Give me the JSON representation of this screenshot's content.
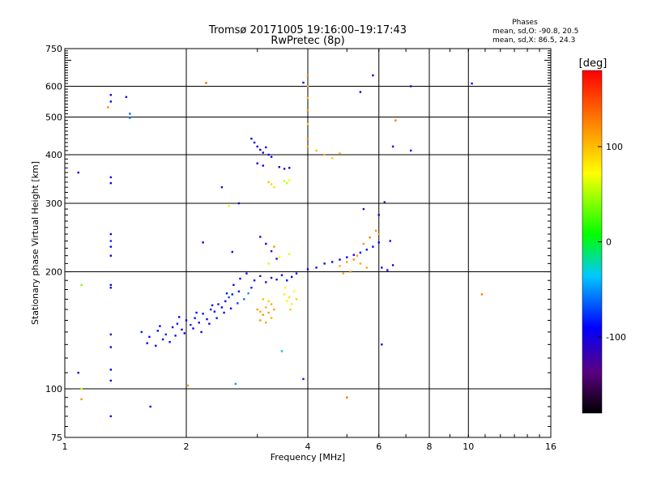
{
  "chart_data": {
    "type": "scatter",
    "title": "Tromsø 20171005  19:16:00–19:17:43",
    "subtitle": "RwPretec (8p)",
    "stats": {
      "heading": "Phases",
      "line_o": "mean, sd,O: -90.8, 20.5",
      "line_x": "mean, sd,X:  86.5, 24.3"
    },
    "xlabel": "Frequency [MHz]",
    "ylabel": "Stationary phase Virtual Height [km]",
    "xscale": "log",
    "yscale": "log",
    "xlim": [
      1,
      16
    ],
    "ylim": [
      75,
      750
    ],
    "x_ticks": [
      "1",
      "2",
      "4",
      "6",
      "8",
      "10",
      "16"
    ],
    "y_ticks": [
      "75",
      "100",
      "200",
      "300",
      "400",
      "500",
      "600",
      "750"
    ],
    "x_gridlines": [
      2,
      4,
      6,
      8,
      10
    ],
    "y_gridlines": [
      100,
      200,
      300,
      400,
      500,
      600
    ],
    "colorbar": {
      "label": "[deg]",
      "range": [
        -180,
        180
      ],
      "ticks": [
        "100",
        "0",
        "-100"
      ],
      "tick_values": [
        100,
        0,
        -100
      ]
    },
    "series": [
      {
        "points": [
          [
            1.55,
            140,
            -85
          ],
          [
            1.62,
            136,
            -90
          ],
          [
            1.7,
            141,
            -95
          ],
          [
            1.78,
            138,
            -80
          ],
          [
            1.85,
            144,
            -100
          ],
          [
            1.9,
            147,
            -85
          ],
          [
            1.95,
            142,
            -90
          ],
          [
            2.0,
            150,
            -95
          ],
          [
            2.05,
            146,
            -80
          ],
          [
            2.1,
            152,
            -88
          ],
          [
            2.15,
            148,
            -92
          ],
          [
            2.2,
            156,
            -85
          ],
          [
            2.25,
            151,
            -95
          ],
          [
            2.3,
            160,
            -80
          ],
          [
            2.35,
            158,
            -90
          ],
          [
            2.4,
            165,
            -85
          ],
          [
            2.45,
            162,
            -92
          ],
          [
            2.5,
            168,
            -98
          ],
          [
            2.55,
            172,
            -70
          ],
          [
            2.6,
            175,
            -85
          ],
          [
            2.7,
            178,
            -90
          ],
          [
            1.6,
            131,
            -100
          ],
          [
            1.68,
            129,
            -95
          ],
          [
            1.75,
            134,
            -92
          ],
          [
            1.82,
            132,
            -88
          ],
          [
            1.88,
            137,
            -86
          ],
          [
            1.98,
            139,
            -90
          ],
          [
            2.08,
            143,
            -94
          ],
          [
            2.18,
            140,
            -96
          ],
          [
            2.28,
            147,
            -90
          ],
          [
            2.38,
            152,
            -85
          ],
          [
            2.48,
            157,
            -88
          ],
          [
            2.58,
            161,
            -92
          ],
          [
            2.68,
            166,
            -75
          ],
          [
            2.78,
            170,
            -60
          ],
          [
            2.85,
            176,
            -50
          ],
          [
            2.9,
            182,
            -80
          ],
          [
            1.72,
            145,
            -90
          ],
          [
            1.92,
            153,
            -95
          ],
          [
            2.12,
            157,
            -90
          ],
          [
            2.32,
            164,
            -95
          ],
          [
            2.52,
            176,
            -85
          ],
          [
            2.62,
            185,
            -90
          ],
          [
            2.72,
            192,
            -88
          ],
          [
            2.82,
            198,
            -94
          ],
          [
            2.95,
            190,
            -100
          ],
          [
            3.05,
            195,
            -130
          ],
          [
            3.15,
            188,
            -120
          ],
          [
            3.25,
            193,
            -110
          ],
          [
            3.35,
            191,
            -105
          ],
          [
            3.45,
            196,
            -95
          ],
          [
            3.55,
            190,
            -90
          ],
          [
            3.65,
            194,
            -88
          ],
          [
            3.75,
            198,
            -92
          ],
          [
            3.0,
            160,
            115
          ],
          [
            3.05,
            158,
            110
          ],
          [
            3.1,
            155,
            118
          ],
          [
            3.15,
            162,
            105
          ],
          [
            3.2,
            157,
            112
          ],
          [
            3.25,
            165,
            108
          ],
          [
            3.3,
            160,
            115
          ],
          [
            3.05,
            150,
            120
          ],
          [
            3.15,
            148,
            112
          ],
          [
            3.25,
            152,
            106
          ],
          [
            3.1,
            170,
            100
          ],
          [
            3.2,
            168,
            95
          ],
          [
            3.5,
            175,
            80
          ],
          [
            3.55,
            168,
            75
          ],
          [
            3.6,
            172,
            85
          ],
          [
            3.65,
            165,
            78
          ],
          [
            3.7,
            178,
            72
          ],
          [
            3.75,
            170,
            90
          ],
          [
            3.62,
            160,
            95
          ],
          [
            3.52,
            182,
            70
          ],
          [
            3.2,
            210,
            60
          ],
          [
            3.4,
            218,
            70
          ],
          [
            3.6,
            222,
            65
          ],
          [
            3.3,
            232,
            120
          ],
          [
            4.0,
            203,
            -100
          ],
          [
            4.2,
            205,
            -95
          ],
          [
            4.4,
            210,
            -90
          ],
          [
            4.6,
            212,
            -100
          ],
          [
            4.8,
            215,
            -95
          ],
          [
            5.0,
            218,
            -92
          ],
          [
            5.2,
            221,
            -98
          ],
          [
            5.4,
            224,
            -90
          ],
          [
            5.6,
            228,
            -85
          ],
          [
            5.8,
            232,
            -95
          ],
          [
            6.0,
            238,
            -90
          ],
          [
            6.1,
            205,
            -105
          ],
          [
            6.3,
            202,
            -100
          ],
          [
            6.5,
            208,
            -98
          ],
          [
            6.4,
            240,
            -95
          ],
          [
            4.8,
            207,
            110
          ],
          [
            5.0,
            212,
            115
          ],
          [
            5.2,
            215,
            120
          ],
          [
            5.4,
            210,
            112
          ],
          [
            5.6,
            205,
            108
          ],
          [
            5.5,
            236,
            120
          ],
          [
            5.7,
            245,
            125
          ],
          [
            5.9,
            255,
            118
          ],
          [
            6.0,
            250,
            110
          ],
          [
            5.3,
            220,
            115
          ],
          [
            5.1,
            200,
            120
          ],
          [
            4.9,
            198,
            112
          ],
          [
            2.9,
            440,
            -100
          ],
          [
            2.95,
            430,
            -95
          ],
          [
            3.0,
            420,
            -92
          ],
          [
            3.05,
            412,
            -100
          ],
          [
            3.1,
            405,
            -110
          ],
          [
            3.15,
            418,
            -98
          ],
          [
            3.2,
            400,
            -95
          ],
          [
            3.25,
            395,
            -100
          ],
          [
            3.0,
            380,
            -105
          ],
          [
            3.1,
            375,
            -98
          ],
          [
            3.4,
            372,
            -110
          ],
          [
            3.5,
            368,
            -105
          ],
          [
            3.6,
            370,
            -100
          ],
          [
            3.2,
            340,
            100
          ],
          [
            3.25,
            336,
            90
          ],
          [
            3.3,
            330,
            85
          ],
          [
            3.5,
            342,
            60
          ],
          [
            3.55,
            338,
            55
          ],
          [
            3.6,
            344,
            70
          ],
          [
            4.0,
            640,
            120
          ],
          [
            4.0,
            600,
            110
          ],
          [
            4.0,
            560,
            100
          ],
          [
            4.0,
            520,
            115
          ],
          [
            4.0,
            480,
            90
          ],
          [
            4.0,
            440,
            125
          ],
          [
            4.0,
            420,
            110
          ],
          [
            1.3,
            548,
            -100
          ],
          [
            1.3,
            570,
            -95
          ],
          [
            1.42,
            563,
            -90
          ],
          [
            1.28,
            530,
            125
          ],
          [
            1.45,
            510,
            -60
          ],
          [
            1.45,
            498,
            -65
          ],
          [
            1.3,
            350,
            -100
          ],
          [
            1.3,
            338,
            -95
          ],
          [
            1.08,
            360,
            -90
          ],
          [
            1.3,
            250,
            -95
          ],
          [
            1.3,
            232,
            -90
          ],
          [
            1.3,
            220,
            -100
          ],
          [
            1.3,
            240,
            -80
          ],
          [
            1.3,
            185,
            -95
          ],
          [
            1.3,
            182,
            -100
          ],
          [
            1.3,
            138,
            -120
          ],
          [
            1.3,
            128,
            -95
          ],
          [
            1.3,
            112,
            -90
          ],
          [
            1.3,
            105,
            -100
          ],
          [
            1.3,
            85,
            -95
          ],
          [
            1.08,
            110,
            -95
          ],
          [
            1.1,
            185,
            40
          ],
          [
            1.1,
            100,
            60
          ],
          [
            1.1,
            94,
            120
          ],
          [
            1.63,
            90,
            -100
          ],
          [
            2.02,
            102,
            110
          ],
          [
            2.65,
            103,
            -50
          ],
          [
            3.45,
            125,
            -40
          ],
          [
            3.9,
            106,
            -120
          ],
          [
            5.0,
            95,
            130
          ],
          [
            6.1,
            130,
            -100
          ],
          [
            2.24,
            612,
            140
          ],
          [
            3.9,
            613,
            -100
          ],
          [
            5.4,
            580,
            -100
          ],
          [
            5.8,
            640,
            -100
          ],
          [
            7.2,
            600,
            -100
          ],
          [
            10.2,
            610,
            -90
          ],
          [
            10.8,
            175,
            130
          ],
          [
            6.5,
            420,
            -95
          ],
          [
            7.2,
            410,
            -100
          ],
          [
            6.6,
            490,
            130
          ],
          [
            4.2,
            410,
            100
          ],
          [
            4.4,
            400,
            105
          ],
          [
            4.6,
            392,
            95
          ],
          [
            4.8,
            403,
            110
          ],
          [
            5.5,
            290,
            -110
          ],
          [
            6.2,
            302,
            -130
          ],
          [
            6.0,
            280,
            -100
          ],
          [
            2.55,
            295,
            80
          ],
          [
            2.7,
            300,
            -95
          ],
          [
            2.6,
            225,
            -100
          ],
          [
            3.05,
            246,
            -110
          ],
          [
            3.15,
            236,
            -95
          ],
          [
            3.25,
            226,
            -115
          ],
          [
            3.35,
            216,
            -105
          ],
          [
            2.45,
            330,
            -100
          ],
          [
            2.2,
            238,
            -90
          ]
        ]
      }
    ]
  }
}
